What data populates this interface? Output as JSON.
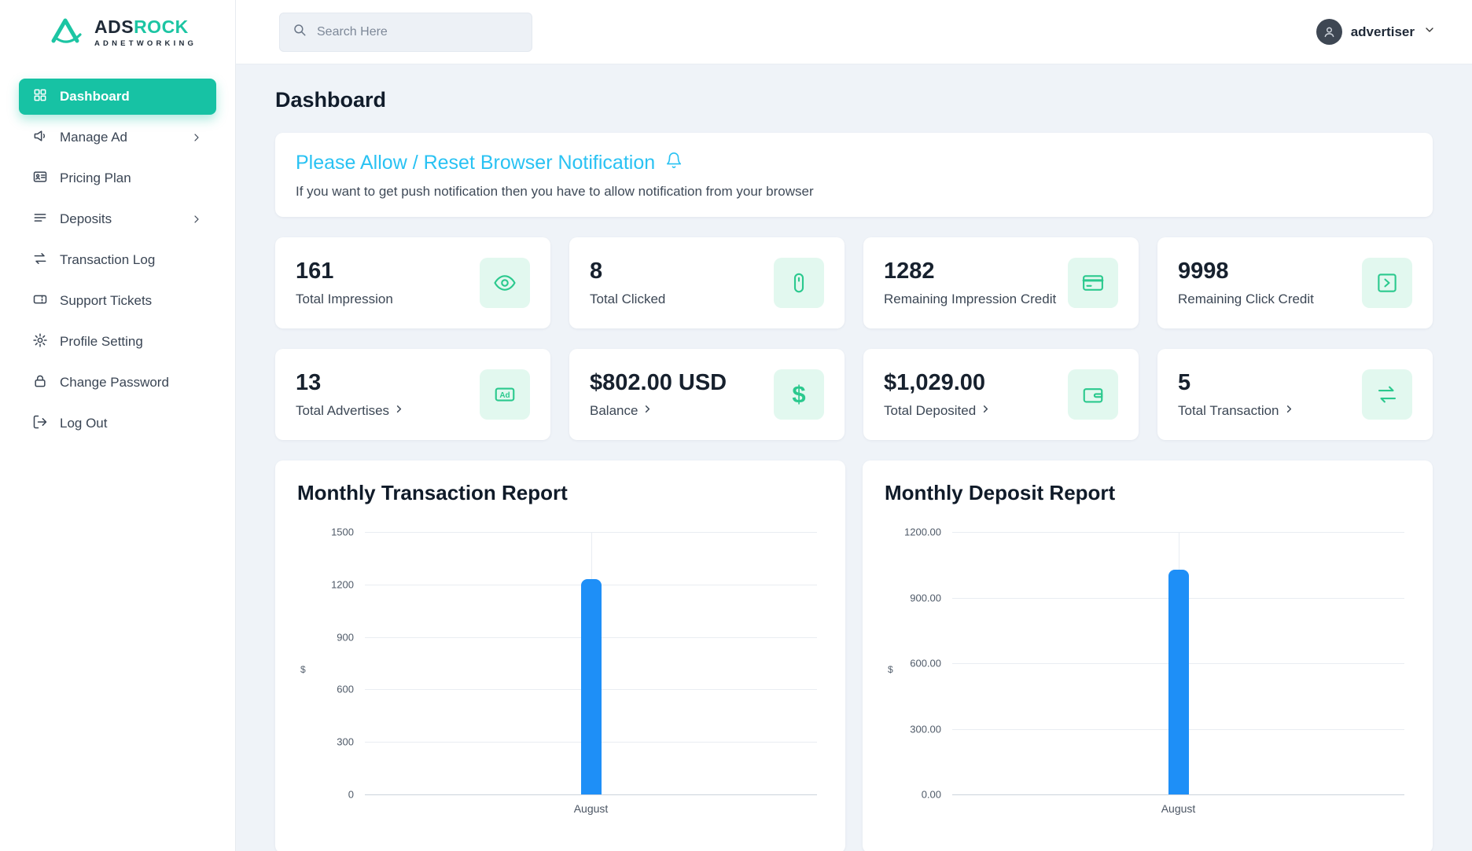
{
  "brand": {
    "name_part1": "ADS",
    "name_part2": "ROCK",
    "subtitle": "ADNETWORKING"
  },
  "sidebar": {
    "items": [
      {
        "label": "Dashboard",
        "icon": "grid",
        "active": true
      },
      {
        "label": "Manage Ad",
        "icon": "megaphone",
        "has_submenu": true
      },
      {
        "label": "Pricing Plan",
        "icon": "id-card"
      },
      {
        "label": "Deposits",
        "icon": "list",
        "has_submenu": true
      },
      {
        "label": "Transaction Log",
        "icon": "exchange-arrows"
      },
      {
        "label": "Support Tickets",
        "icon": "ticket"
      },
      {
        "label": "Profile Setting",
        "icon": "gear"
      },
      {
        "label": "Change Password",
        "icon": "lock"
      },
      {
        "label": "Log Out",
        "icon": "logout"
      }
    ]
  },
  "topbar": {
    "search_placeholder": "Search Here",
    "user_label": "advertiser"
  },
  "main": {
    "page_title": "Dashboard",
    "notification": {
      "title": "Please Allow / Reset Browser Notification",
      "subtitle": "If you want to get push notification then you have to allow notification from your browser"
    },
    "stats": [
      {
        "value": "161",
        "label": "Total Impression",
        "icon": "eye"
      },
      {
        "value": "8",
        "label": "Total Clicked",
        "icon": "mouse"
      },
      {
        "value": "1282",
        "label": "Remaining Impression Credit",
        "icon": "credit-card"
      },
      {
        "value": "9998",
        "label": "Remaining Click Credit",
        "icon": "arrow-square"
      },
      {
        "value": "13",
        "label": "Total Advertises",
        "icon": "ad-badge",
        "link": true
      },
      {
        "value": "$802.00 USD",
        "label": "Balance",
        "icon": "dollar",
        "link": true
      },
      {
        "value": "$1,029.00",
        "label": "Total Deposited",
        "icon": "wallet",
        "link": true
      },
      {
        "value": "5",
        "label": "Total Transaction",
        "icon": "exchange",
        "link": true
      }
    ]
  },
  "icon_glyphs": {
    "ad": "Ad",
    "dollar": "$"
  },
  "chart_data": [
    {
      "type": "bar",
      "title": "Monthly Transaction Report",
      "categories": [
        "August"
      ],
      "values": [
        1229
      ],
      "xlabel": "",
      "ylabel": "$",
      "ylim": [
        0,
        1500
      ],
      "yticks": [
        "1500",
        "1200",
        "900",
        "600",
        "300",
        "0"
      ],
      "grid": true,
      "legend": false,
      "bar_color": "#1E8FF7"
    },
    {
      "type": "bar",
      "title": "Monthly Deposit Report",
      "categories": [
        "August"
      ],
      "values": [
        1029
      ],
      "xlabel": "",
      "ylabel": "$",
      "ylim": [
        0,
        1200
      ],
      "yticks": [
        "1200.00",
        "900.00",
        "600.00",
        "300.00",
        "0.00"
      ],
      "grid": true,
      "legend": false,
      "bar_color": "#1E8FF7"
    }
  ],
  "colors": {
    "accent_teal": "#17C2A4",
    "stat_icon_green": "#2BC98E",
    "stat_icon_bg": "#E2F8EF",
    "notification_cyan": "#29C2F3",
    "chart_bar_blue": "#1E8FF7"
  }
}
